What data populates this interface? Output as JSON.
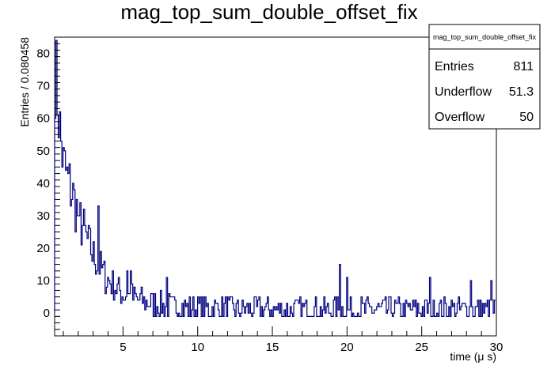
{
  "chart_data": {
    "type": "histogram",
    "title": "mag_top_sum_double_offset_fix",
    "xlabel": "time (μ s)",
    "ylabel": "Entries / 0.080458",
    "xlim": [
      0.42,
      30
    ],
    "ylim": [
      -7,
      85
    ],
    "x_ticks": [
      5,
      10,
      15,
      20,
      25,
      30
    ],
    "y_ticks": [
      0,
      10,
      20,
      30,
      40,
      50,
      60,
      70,
      80
    ],
    "bin_width": 0.080458,
    "line_color": "#000080",
    "grid": false,
    "stats": {
      "title": "mag_top_sum_double_offset_fix",
      "rows": [
        {
          "label": "Entries",
          "value": "811"
        },
        {
          "label": "Underflow",
          "value": "51.3"
        },
        {
          "label": "Overflow",
          "value": "50"
        }
      ]
    },
    "profile": [
      [
        0.42,
        78
      ],
      [
        0.6,
        68
      ],
      [
        0.8,
        55
      ],
      [
        1.0,
        46
      ],
      [
        1.3,
        41
      ],
      [
        1.6,
        37
      ],
      [
        1.9,
        32
      ],
      [
        2.2,
        28
      ],
      [
        2.5,
        24
      ],
      [
        2.8,
        20
      ],
      [
        3.1,
        17
      ],
      [
        3.4,
        15
      ],
      [
        3.7,
        12
      ],
      [
        4.0,
        10
      ],
      [
        4.5,
        8
      ],
      [
        5.0,
        6
      ],
      [
        6.0,
        4
      ],
      [
        7.0,
        3
      ],
      [
        8.0,
        2
      ],
      [
        10.0,
        1.5
      ],
      [
        15.0,
        1
      ],
      [
        30.0,
        1
      ]
    ],
    "spikes": [
      {
        "x": 3.35,
        "y": 33
      },
      {
        "x": 2.05,
        "y": 30
      },
      {
        "x": 5.3,
        "y": 13
      },
      {
        "x": 5.5,
        "y": 13
      },
      {
        "x": 7.95,
        "y": 11
      },
      {
        "x": 19.5,
        "y": 15
      },
      {
        "x": 20.0,
        "y": 11
      },
      {
        "x": 25.6,
        "y": 11
      },
      {
        "x": 28.3,
        "y": 10
      },
      {
        "x": 29.7,
        "y": 10
      }
    ],
    "noise_amplitude": 4,
    "min_value": -1
  }
}
